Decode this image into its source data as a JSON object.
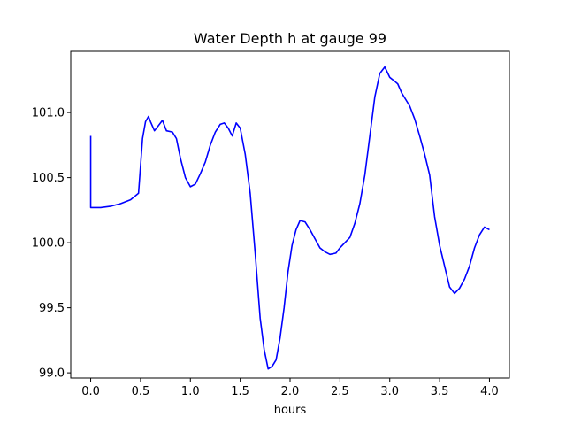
{
  "chart_data": {
    "type": "line",
    "title": "Water Depth h at gauge 99",
    "xlabel": "hours",
    "ylabel": "",
    "xlim": [
      -0.2,
      4.2
    ],
    "ylim": [
      98.96,
      101.47
    ],
    "xticks": [
      0.0,
      0.5,
      1.0,
      1.5,
      2.0,
      2.5,
      3.0,
      3.5,
      4.0
    ],
    "xtick_labels": [
      "0.0",
      "0.5",
      "1.0",
      "1.5",
      "2.0",
      "2.5",
      "3.0",
      "3.5",
      "4.0"
    ],
    "yticks": [
      99.0,
      99.5,
      100.0,
      100.5,
      101.0
    ],
    "ytick_labels": [
      "99.0",
      "99.5",
      "100.0",
      "100.5",
      "101.0"
    ],
    "grid": false,
    "series": [
      {
        "color": "#0000ff",
        "x": [
          0.0,
          0.0,
          0.1,
          0.2,
          0.3,
          0.4,
          0.48,
          0.52,
          0.55,
          0.58,
          0.6,
          0.64,
          0.68,
          0.72,
          0.76,
          0.82,
          0.86,
          0.9,
          0.95,
          1.0,
          1.05,
          1.1,
          1.15,
          1.2,
          1.25,
          1.3,
          1.34,
          1.38,
          1.42,
          1.46,
          1.5,
          1.55,
          1.6,
          1.65,
          1.7,
          1.74,
          1.78,
          1.82,
          1.86,
          1.9,
          1.94,
          1.98,
          2.02,
          2.06,
          2.1,
          2.15,
          2.2,
          2.25,
          2.3,
          2.35,
          2.4,
          2.46,
          2.5,
          2.55,
          2.6,
          2.65,
          2.7,
          2.75,
          2.8,
          2.85,
          2.9,
          2.95,
          3.0,
          3.05,
          3.08,
          3.12,
          3.16,
          3.2,
          3.25,
          3.3,
          3.35,
          3.4,
          3.45,
          3.5,
          3.55,
          3.6,
          3.65,
          3.7,
          3.75,
          3.8,
          3.85,
          3.9,
          3.95,
          4.0
        ],
        "y": [
          100.82,
          100.27,
          100.27,
          100.28,
          100.3,
          100.33,
          100.38,
          100.8,
          100.93,
          100.97,
          100.93,
          100.86,
          100.9,
          100.94,
          100.86,
          100.85,
          100.8,
          100.65,
          100.5,
          100.43,
          100.45,
          100.53,
          100.62,
          100.75,
          100.85,
          100.91,
          100.92,
          100.88,
          100.82,
          100.92,
          100.88,
          100.68,
          100.38,
          99.92,
          99.42,
          99.18,
          99.03,
          99.05,
          99.1,
          99.27,
          99.5,
          99.78,
          99.98,
          100.1,
          100.17,
          100.16,
          100.1,
          100.03,
          99.96,
          99.93,
          99.91,
          99.92,
          99.96,
          100.0,
          100.04,
          100.15,
          100.3,
          100.52,
          100.82,
          101.12,
          101.3,
          101.35,
          101.27,
          101.24,
          101.22,
          101.15,
          101.1,
          101.05,
          100.95,
          100.82,
          100.68,
          100.52,
          100.2,
          99.98,
          99.82,
          99.66,
          99.61,
          99.65,
          99.72,
          99.82,
          99.96,
          100.06,
          100.12,
          100.1
        ]
      }
    ]
  }
}
